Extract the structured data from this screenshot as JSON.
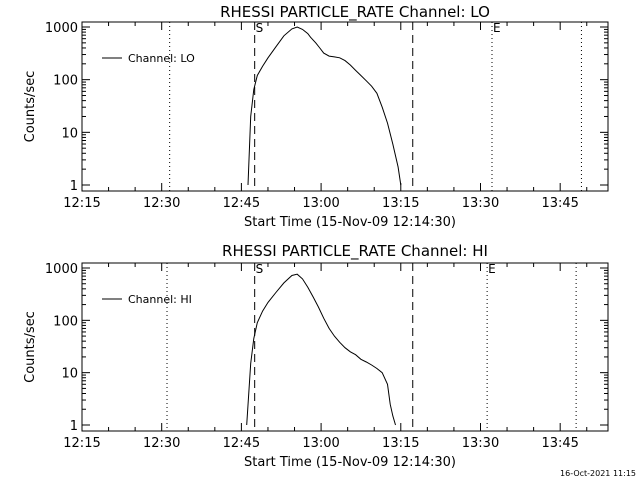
{
  "footer": {
    "timestamp": "16-Oct-2021 11:15"
  },
  "chart_data": [
    {
      "type": "line",
      "title": "RHESSI PARTICLE_RATE Channel: LO",
      "xlabel": "Start Time (15-Nov-09 12:14:30)",
      "ylabel": "Counts/sec",
      "yscale": "log",
      "xlim": [
        "12:15",
        "13:54"
      ],
      "ylim": [
        1,
        1000
      ],
      "x_tick_labels": [
        "12:15",
        "12:30",
        "12:45",
        "13:00",
        "13:15",
        "13:30",
        "13:45"
      ],
      "y_tick_labels": [
        "1",
        "10",
        "100",
        "1000"
      ],
      "legend": {
        "position": "top-left",
        "entries": [
          "Channel: LO"
        ]
      },
      "markers": {
        "start_label": "S",
        "end_label": "E"
      },
      "vlines": {
        "dashed": [
          "12:47:30",
          "13:17:15"
        ],
        "dotted": [
          "12:31:30",
          "13:32:10",
          "13:49:00"
        ]
      },
      "series": [
        {
          "name": "Channel: LO",
          "x": [
            "12:46:15",
            "12:46:45",
            "12:47:20",
            "12:48:00",
            "12:49:00",
            "12:50:00",
            "12:51:30",
            "12:53:00",
            "12:54:30",
            "12:55:30",
            "12:56:30",
            "12:57:30",
            "12:58:00",
            "12:59:00",
            "12:59:45",
            "13:00:30",
            "13:01:30",
            "13:02:30",
            "13:03:30",
            "13:04:30",
            "13:05:30",
            "13:06:30",
            "13:07:30",
            "13:08:30",
            "13:09:30",
            "13:10:30",
            "13:11:30",
            "13:12:30",
            "13:13:30",
            "13:14:30",
            "13:15:00"
          ],
          "y": [
            1,
            20,
            65,
            120,
            180,
            260,
            420,
            680,
            920,
            1000,
            900,
            750,
            640,
            500,
            400,
            320,
            280,
            270,
            260,
            230,
            190,
            150,
            120,
            95,
            75,
            55,
            30,
            15,
            6,
            2.2,
            1
          ]
        }
      ]
    },
    {
      "type": "line",
      "title": "RHESSI PARTICLE_RATE Channel: HI",
      "xlabel": "Start Time (15-Nov-09 12:14:30)",
      "ylabel": "Counts/sec",
      "yscale": "log",
      "xlim": [
        "12:15",
        "13:54"
      ],
      "ylim": [
        1,
        1000
      ],
      "x_tick_labels": [
        "12:15",
        "12:30",
        "12:45",
        "13:00",
        "13:15",
        "13:30",
        "13:45"
      ],
      "y_tick_labels": [
        "1",
        "10",
        "100",
        "1000"
      ],
      "legend": {
        "position": "top-left",
        "entries": [
          "Channel: HI"
        ]
      },
      "markers": {
        "start_label": "S",
        "end_label": "E"
      },
      "vlines": {
        "dashed": [
          "12:47:30",
          "13:17:15"
        ],
        "dotted": [
          "12:31:00",
          "13:31:15",
          "13:48:00"
        ]
      },
      "series": [
        {
          "name": "Channel: HI",
          "x": [
            "12:46:00",
            "12:46:45",
            "12:47:20",
            "12:48:00",
            "12:49:00",
            "12:50:00",
            "12:51:30",
            "12:53:00",
            "12:54:30",
            "12:55:30",
            "12:56:30",
            "12:57:30",
            "12:58:30",
            "12:59:30",
            "13:00:30",
            "13:01:30",
            "13:02:30",
            "13:03:30",
            "13:04:30",
            "13:05:30",
            "13:06:30",
            "13:07:30",
            "13:08:30",
            "13:09:30",
            "13:10:30",
            "13:11:30",
            "13:12:30",
            "13:13:00",
            "13:13:30",
            "13:14:00"
          ],
          "y": [
            1,
            15,
            45,
            90,
            150,
            220,
            340,
            520,
            720,
            760,
            620,
            430,
            280,
            180,
            110,
            70,
            50,
            38,
            30,
            25,
            22,
            18,
            16,
            14,
            12,
            10,
            6,
            2.5,
            1.5,
            1
          ]
        }
      ]
    }
  ]
}
